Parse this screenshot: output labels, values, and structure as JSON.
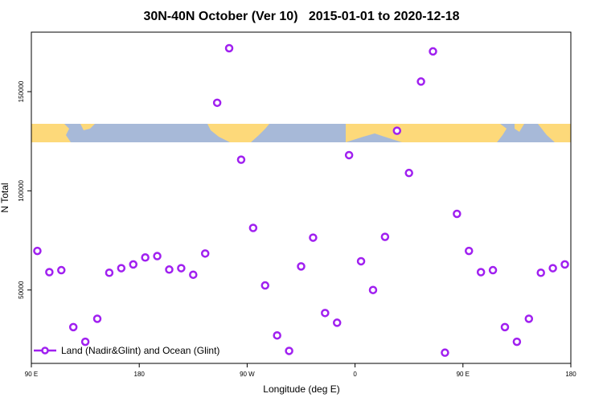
{
  "chart_data": {
    "type": "scatter",
    "title": "30N-40N October (Ver 10)   2015-01-01 to 2020-12-18",
    "xlabel": "Longitude (deg E)",
    "ylabel": "N Total",
    "xlim": [
      90,
      540
    ],
    "xticks": [
      {
        "value": 90,
        "label": "90 E"
      },
      {
        "value": 180,
        "label": "180"
      },
      {
        "value": 270,
        "label": "90 W"
      },
      {
        "value": 360,
        "label": "0"
      },
      {
        "value": 450,
        "label": "90 E"
      },
      {
        "value": 540,
        "label": "180"
      }
    ],
    "ylim": [
      13000,
      180000
    ],
    "yticks": [
      50000,
      100000,
      150000
    ],
    "legend": "bottom-left",
    "series": [
      {
        "name": "Land (Nadir&Glint) and Ocean (Glint)",
        "color": "#a020f0",
        "x": [
          95,
          105,
          115,
          125,
          135,
          145,
          155,
          165,
          175,
          185,
          195,
          205,
          215,
          225,
          235,
          245,
          255,
          265,
          275,
          285,
          295,
          305,
          315,
          325,
          335,
          345,
          355,
          365,
          375,
          385,
          395,
          405,
          415,
          425,
          435,
          445,
          455,
          465,
          475,
          485,
          495,
          505,
          515,
          525,
          535
        ],
        "values": [
          69700,
          59000,
          60000,
          31300,
          23900,
          35500,
          58700,
          61000,
          62900,
          66400,
          67100,
          60300,
          61000,
          57700,
          68400,
          144400,
          171900,
          115700,
          81300,
          52300,
          27100,
          19300,
          61900,
          76400,
          38400,
          33500,
          118000,
          64500,
          50000,
          76800,
          130300,
          109000,
          155100,
          170300,
          18400,
          88400,
          69700,
          59000,
          60000,
          31300,
          23900,
          35500,
          58700,
          61000,
          62900
        ]
      }
    ]
  }
}
